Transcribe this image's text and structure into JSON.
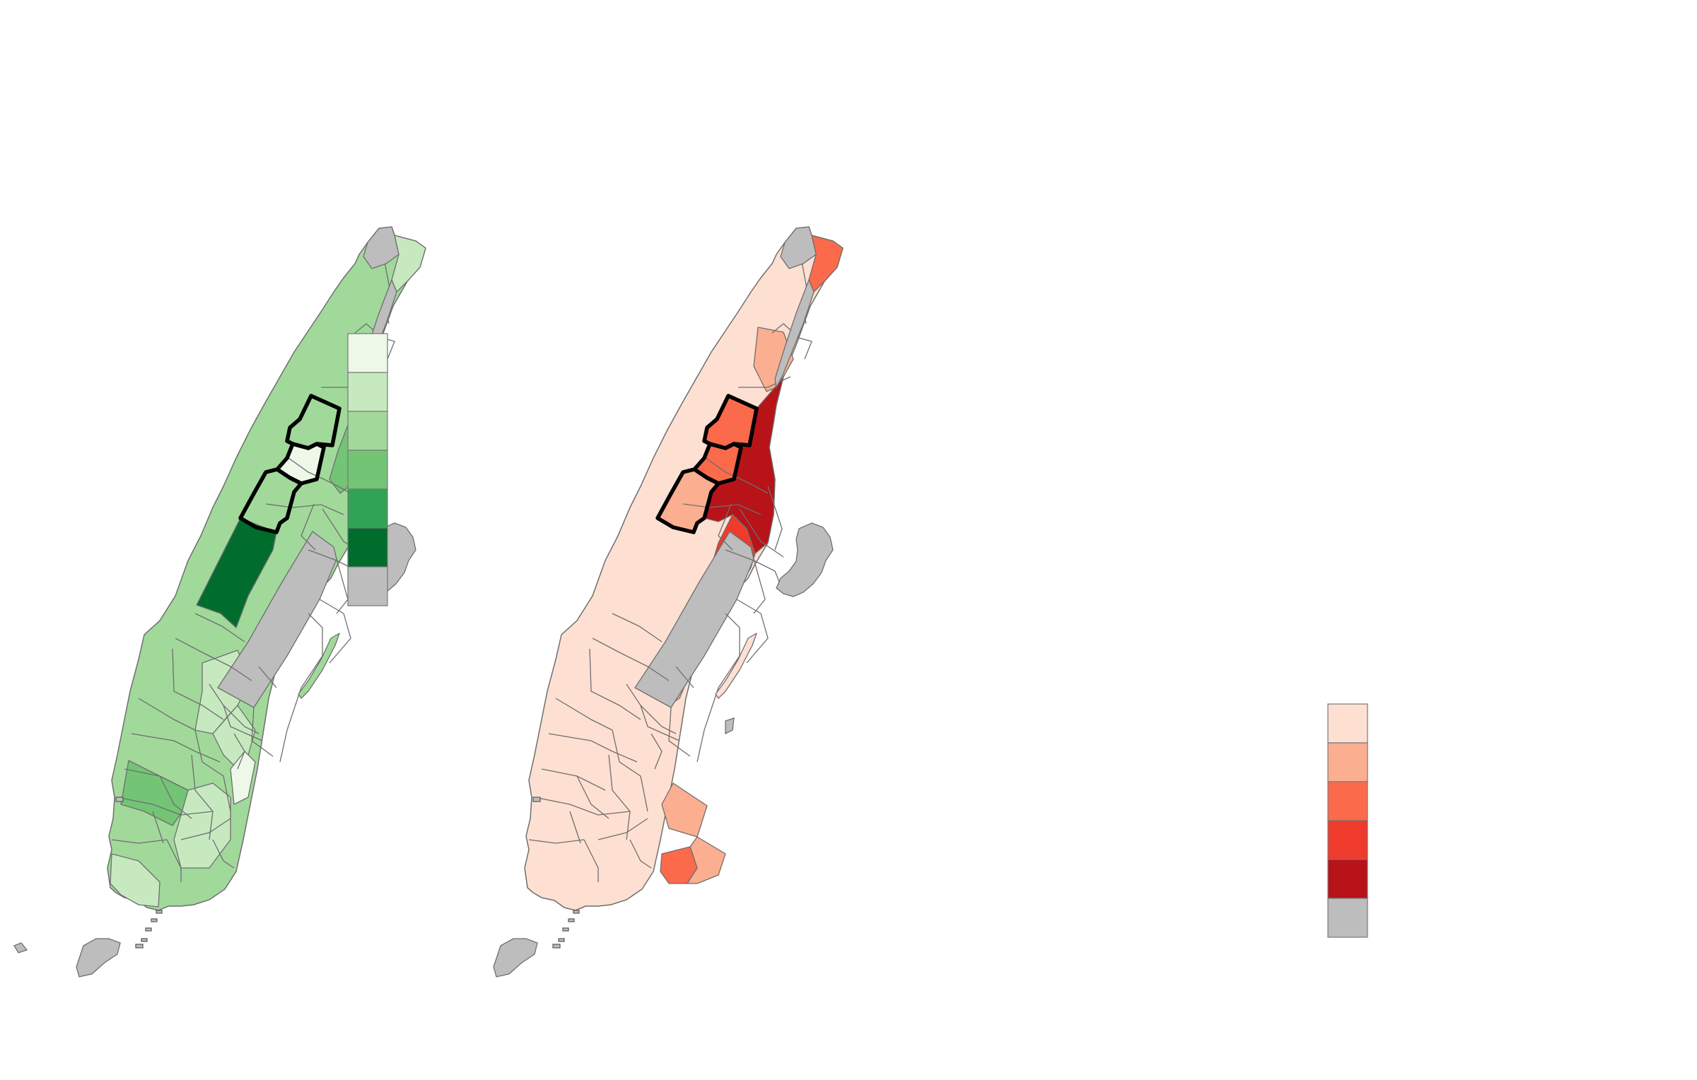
{
  "maps": [
    {
      "name": "left-green-choropleth",
      "palette": "Greens",
      "legend_colors": [
        "#edf8e9",
        "#c7e9c0",
        "#a1d99b",
        "#74c476",
        "#31a354",
        "#006d2c",
        "#bdbdbd"
      ],
      "highlighted_districts": 3
    },
    {
      "name": "right-red-choropleth",
      "palette": "Reds",
      "legend_colors": [
        "#fee0d2",
        "#fcae91",
        "#fb6a4a",
        "#ef3b2c",
        "#b71318",
        "#bdbdbd"
      ],
      "highlighted_districts": 3
    }
  ],
  "no_data_color": "#bdbdbd",
  "highlight_color": "#000000"
}
